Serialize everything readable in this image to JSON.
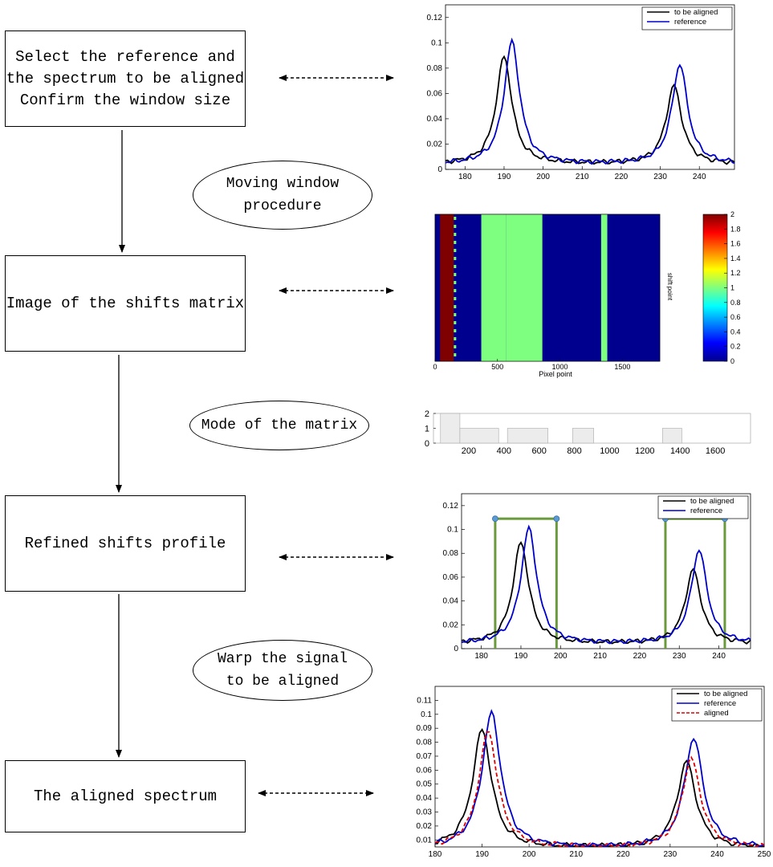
{
  "steps": [
    {
      "lines": [
        "Select the reference and",
        "the spectrum to be aligned",
        "Confirm the window size"
      ]
    },
    {
      "lines": [
        "Image of the shifts matrix"
      ]
    },
    {
      "lines": [
        "Refined shifts profile"
      ]
    },
    {
      "lines": [
        "The aligned spectrum"
      ]
    }
  ],
  "procedures": [
    {
      "lines": [
        "Moving window",
        "procedure"
      ]
    },
    {
      "lines": [
        "Mode of the matrix"
      ]
    },
    {
      "lines": [
        "Warp the signal",
        "to be aligned"
      ]
    }
  ],
  "chart_data": [
    {
      "type": "line",
      "xlim": [
        175,
        249
      ],
      "ylim": [
        0,
        0.13
      ],
      "xticks": [
        180,
        190,
        200,
        210,
        220,
        230,
        240
      ],
      "yticks": [
        0,
        0.02,
        0.04,
        0.06,
        0.08,
        0.1,
        0.12
      ],
      "ytick_labels": [
        "0",
        "0.02",
        "0.04",
        "0.06",
        "0.08",
        "0.1",
        "0.12"
      ],
      "legend": "top-right",
      "series": [
        {
          "name": "to be aligned",
          "color": "#000000",
          "peaks": [
            [
              190,
              0.089
            ],
            [
              233.5,
              0.066
            ]
          ]
        },
        {
          "name": "reference",
          "color": "#0000cc",
          "peaks": [
            [
              192,
              0.101
            ],
            [
              235,
              0.083
            ]
          ]
        }
      ]
    },
    {
      "type": "heatmap",
      "xlim": [
        0,
        1800
      ],
      "xticks": [
        0,
        500,
        1000,
        1500
      ],
      "xlabel": "Pixel point",
      "ylabel": "shift point",
      "colorbar": {
        "min": 0,
        "max": 2,
        "ticks": [
          0,
          0.2,
          0.4,
          0.6,
          0.8,
          1,
          1.2,
          1.4,
          1.6,
          1.8,
          2
        ]
      },
      "bands": [
        [
          40,
          150,
          2
        ],
        [
          150,
          370,
          0
        ],
        [
          370,
          570,
          1
        ],
        [
          570,
          860,
          1
        ],
        [
          860,
          900,
          0
        ],
        [
          900,
          1330,
          0
        ],
        [
          1330,
          1380,
          1
        ],
        [
          1380,
          1800,
          0
        ]
      ],
      "band_colors": {
        "0": "#00008f",
        "1": "#7fff7f",
        "2": "#7f0000"
      }
    },
    {
      "type": "area",
      "xlim": [
        0,
        1800
      ],
      "ylim": [
        0,
        2
      ],
      "xticks": [
        200,
        400,
        600,
        800,
        1000,
        1200,
        1400,
        1600
      ],
      "yticks": [
        0,
        1,
        2
      ],
      "segments": [
        [
          40,
          150,
          2
        ],
        [
          150,
          370,
          1
        ],
        [
          370,
          420,
          0
        ],
        [
          420,
          650,
          1
        ],
        [
          650,
          790,
          0
        ],
        [
          790,
          910,
          1
        ],
        [
          910,
          1300,
          0
        ],
        [
          1300,
          1410,
          1
        ],
        [
          1410,
          1800,
          0
        ]
      ]
    },
    {
      "type": "line",
      "xlim": [
        175,
        248
      ],
      "ylim": [
        0,
        0.13
      ],
      "xticks": [
        180,
        190,
        200,
        210,
        220,
        230,
        240
      ],
      "yticks": [
        0,
        0.02,
        0.04,
        0.06,
        0.08,
        0.1,
        0.12
      ],
      "ytick_labels": [
        "0",
        "0.02",
        "0.04",
        "0.06",
        "0.08",
        "0.1",
        "0.12"
      ],
      "legend": "top-right",
      "series": [
        {
          "name": "to be aligned",
          "color": "#000000",
          "peaks": [
            [
              190,
              0.089
            ],
            [
              233.5,
              0.066
            ]
          ]
        },
        {
          "name": "reference",
          "color": "#0000cc",
          "peaks": [
            [
              192,
              0.101
            ],
            [
              235,
              0.083
            ]
          ]
        }
      ],
      "windows": [
        [
          183.5,
          199
        ],
        [
          226.5,
          241.5
        ]
      ],
      "window_level": 0.109,
      "window_color": "#6a9a3c"
    },
    {
      "type": "line",
      "xlim": [
        180,
        250
      ],
      "ylim": [
        0.005,
        0.12
      ],
      "xticks": [
        180,
        190,
        200,
        210,
        220,
        230,
        240,
        250
      ],
      "yticks": [
        0.01,
        0.02,
        0.03,
        0.04,
        0.05,
        0.06,
        0.07,
        0.08,
        0.09,
        0.1,
        0.11
      ],
      "ytick_labels": [
        "0.01",
        "0.02",
        "0.03",
        "0.04",
        "0.05",
        "0.06",
        "0.07",
        "0.08",
        "0.09",
        "0.1",
        "0.11"
      ],
      "legend": "top-right",
      "series": [
        {
          "name": "to be aligned",
          "color": "#000000",
          "peaks": [
            [
              190,
              0.089
            ],
            [
              233.5,
              0.066
            ]
          ]
        },
        {
          "name": "reference",
          "color": "#0000cc",
          "peaks": [
            [
              192,
              0.101
            ],
            [
              235,
              0.083
            ]
          ]
        },
        {
          "name": "aligned",
          "color": "#dd0000",
          "dashed": true,
          "peaks": [
            [
              191.3,
              0.088
            ],
            [
              234.5,
              0.068
            ]
          ]
        }
      ]
    }
  ]
}
